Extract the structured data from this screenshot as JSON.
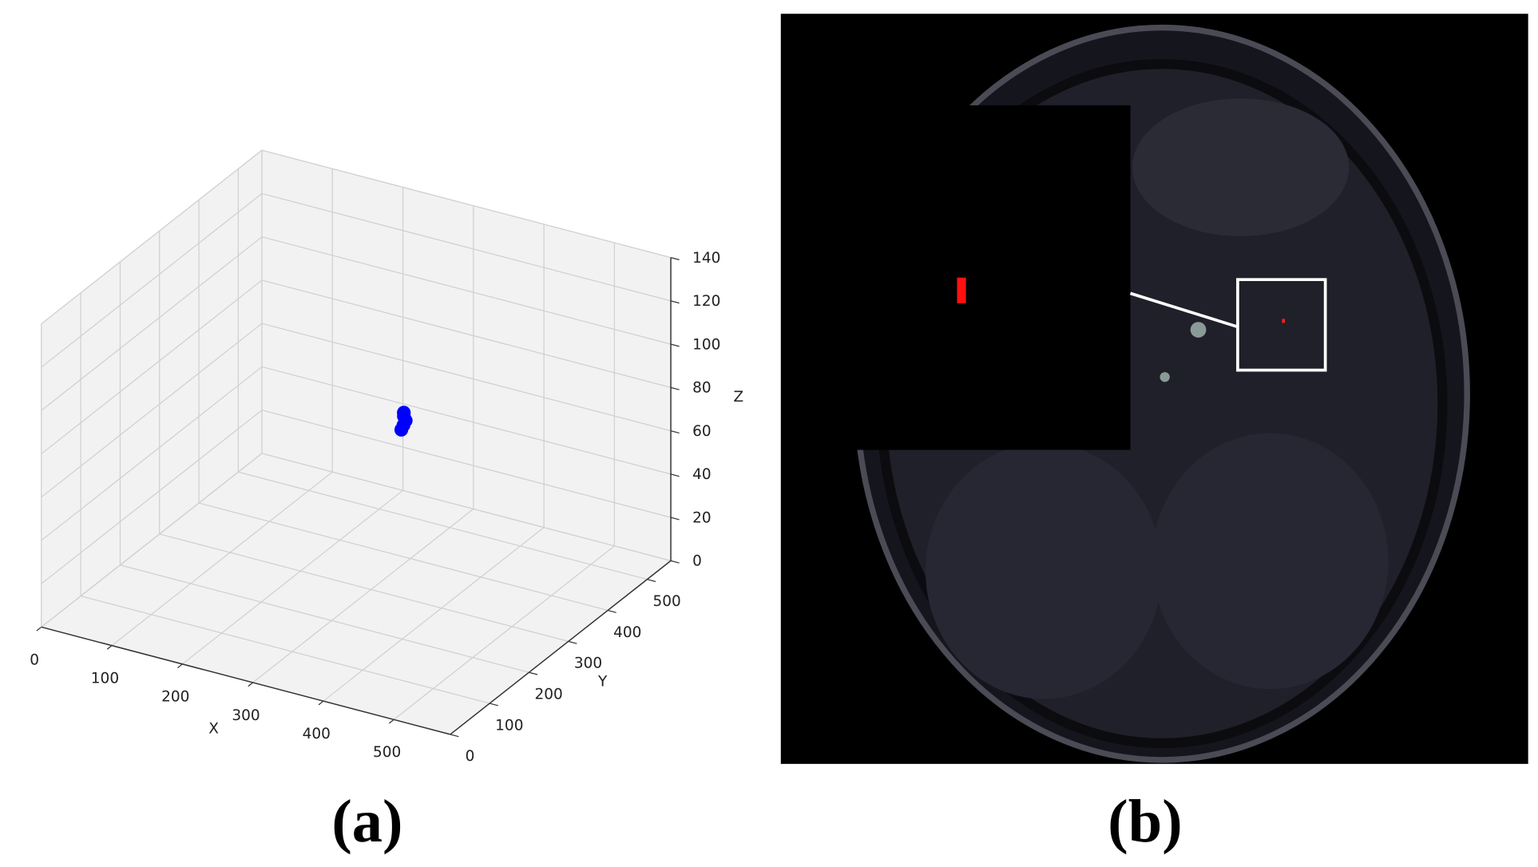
{
  "chart_data": {
    "type": "scatter3d",
    "xlabel": "X",
    "ylabel": "Y",
    "zlabel": "Z",
    "xlim": [
      0,
      580
    ],
    "ylim": [
      0,
      560
    ],
    "zlim": [
      0,
      140
    ],
    "xticks": [
      0,
      100,
      200,
      300,
      400,
      500
    ],
    "yticks": [
      0,
      100,
      200,
      300,
      400,
      500
    ],
    "zticks": [
      0,
      20,
      40,
      60,
      80,
      100,
      120,
      140
    ],
    "grid": true,
    "series": [
      {
        "color": "#0000ff",
        "x": [
          286,
          288,
          290,
          288,
          289
        ],
        "y": [
          402,
          404,
          406,
          405,
          403
        ],
        "values": [
          58,
          60,
          62,
          64,
          66
        ]
      }
    ]
  },
  "captions": [
    "(a)",
    "(b)"
  ]
}
